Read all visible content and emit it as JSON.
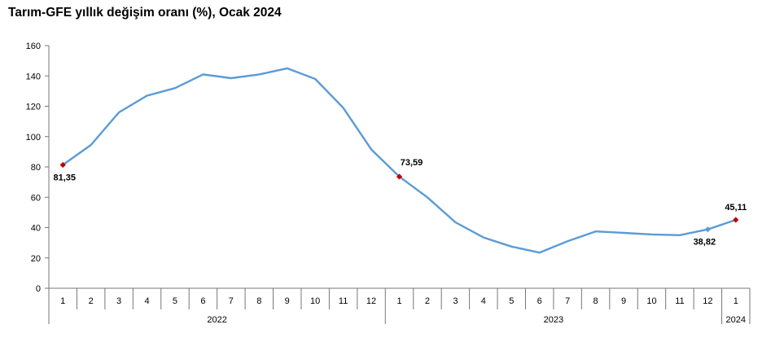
{
  "chart_data": {
    "type": "line",
    "title": "Tarım-GFE yıllık değişim oranı (%), Ocak 2024",
    "xlabel": "",
    "ylabel": "",
    "ylim": [
      0,
      160
    ],
    "yticks": [
      "0",
      "20",
      "40",
      "60",
      "80",
      "100",
      "120",
      "140",
      "160"
    ],
    "categories": [
      "1",
      "2",
      "3",
      "4",
      "5",
      "6",
      "7",
      "8",
      "9",
      "10",
      "11",
      "12",
      "1",
      "2",
      "3",
      "4",
      "5",
      "6",
      "7",
      "8",
      "9",
      "10",
      "11",
      "12",
      "1"
    ],
    "years": [
      {
        "label": "2022",
        "count": 12
      },
      {
        "label": "2023",
        "count": 12
      },
      {
        "label": "2024",
        "count": 1
      }
    ],
    "series": [
      {
        "values": [
          81.35,
          94.5,
          116.0,
          127.0,
          132.0,
          141.0,
          138.5,
          141.0,
          145.0,
          138.0,
          119.0,
          91.5,
          73.59,
          60.0,
          43.5,
          33.5,
          27.5,
          23.5,
          31.0,
          37.5,
          36.5,
          35.5,
          35.0,
          38.82,
          45.11
        ],
        "color": "#5b9bd5"
      }
    ],
    "highlight_points": [
      {
        "index": 0,
        "label": "81,35",
        "color": "#c00000"
      },
      {
        "index": 12,
        "label": "73,59",
        "color": "#c00000"
      },
      {
        "index": 23,
        "label": "38,82",
        "color": "#5b9bd5"
      },
      {
        "index": 24,
        "label": "45,11",
        "color": "#c00000"
      }
    ],
    "grid": false,
    "legend": "none"
  }
}
